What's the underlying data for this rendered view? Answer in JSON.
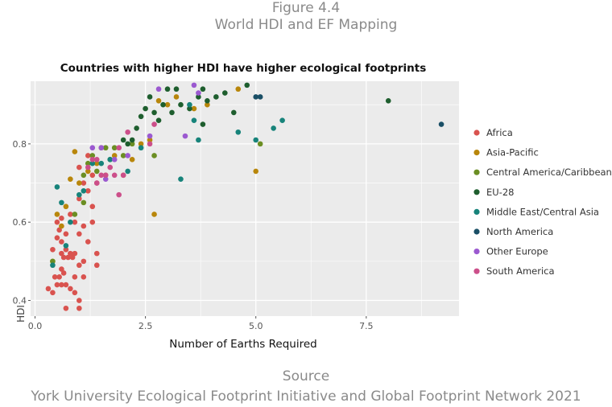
{
  "figure": {
    "number": "Figure 4.4",
    "name": "World HDI and EF Mapping"
  },
  "source": {
    "label": "Source",
    "text": "York University Ecological Footprint Initiative and Global Footprint Network 2021"
  },
  "chart_data": {
    "type": "scatter",
    "title": "Countries with higher HDI have higher ecological footprints",
    "xlabel": "Number of Earths Required",
    "ylabel": "HDI",
    "xlim": [
      -0.1,
      9.6
    ],
    "ylim": [
      0.36,
      0.96
    ],
    "xticks": [
      0,
      2.5,
      5,
      7.5
    ],
    "xtick_labels": [
      "0.0",
      "2.5",
      "5.0",
      "7.5"
    ],
    "yticks": [
      0.4,
      0.6,
      0.8
    ],
    "ytick_labels": [
      "0.4",
      "0.6",
      "0.8"
    ],
    "grid": true,
    "legend_position": "right",
    "series": [
      {
        "name": "Africa",
        "color": "#d9534f",
        "points": [
          [
            0.3,
            0.43
          ],
          [
            0.4,
            0.42
          ],
          [
            0.45,
            0.46
          ],
          [
            0.5,
            0.44
          ],
          [
            0.55,
            0.46
          ],
          [
            0.6,
            0.48
          ],
          [
            0.6,
            0.44
          ],
          [
            0.65,
            0.47
          ],
          [
            0.7,
            0.44
          ],
          [
            0.8,
            0.43
          ],
          [
            0.9,
            0.46
          ],
          [
            0.9,
            0.42
          ],
          [
            1.0,
            0.4
          ],
          [
            1.0,
            0.38
          ],
          [
            1.1,
            0.46
          ],
          [
            0.7,
            0.38
          ],
          [
            1.4,
            0.52
          ],
          [
            1.4,
            0.49
          ],
          [
            0.4,
            0.53
          ],
          [
            0.5,
            0.56
          ],
          [
            0.6,
            0.55
          ],
          [
            0.6,
            0.52
          ],
          [
            0.65,
            0.51
          ],
          [
            0.7,
            0.53
          ],
          [
            0.75,
            0.51
          ],
          [
            0.8,
            0.52
          ],
          [
            0.85,
            0.51
          ],
          [
            0.9,
            0.52
          ],
          [
            1.0,
            0.49
          ],
          [
            1.1,
            0.5
          ],
          [
            0.5,
            0.6
          ],
          [
            0.55,
            0.58
          ],
          [
            0.6,
            0.61
          ],
          [
            0.7,
            0.57
          ],
          [
            0.8,
            0.62
          ],
          [
            0.9,
            0.6
          ],
          [
            1.0,
            0.57
          ],
          [
            1.1,
            0.59
          ],
          [
            1.2,
            0.55
          ],
          [
            1.3,
            0.6
          ],
          [
            1.3,
            0.64
          ],
          [
            1.0,
            0.66
          ],
          [
            1.1,
            0.7
          ],
          [
            1.2,
            0.68
          ],
          [
            1.3,
            0.72
          ],
          [
            1.4,
            0.7
          ],
          [
            1.0,
            0.74
          ],
          [
            1.2,
            0.77
          ]
        ]
      },
      {
        "name": "Asia-Pacific",
        "color": "#b8860b",
        "points": [
          [
            0.4,
            0.5
          ],
          [
            0.5,
            0.62
          ],
          [
            0.6,
            0.59
          ],
          [
            0.7,
            0.64
          ],
          [
            0.8,
            0.71
          ],
          [
            0.9,
            0.78
          ],
          [
            1.0,
            0.7
          ],
          [
            1.2,
            0.73
          ],
          [
            1.4,
            0.75
          ],
          [
            1.5,
            0.79
          ],
          [
            1.6,
            0.72
          ],
          [
            1.8,
            0.77
          ],
          [
            2.0,
            0.72
          ],
          [
            2.2,
            0.76
          ],
          [
            2.4,
            0.8
          ],
          [
            2.6,
            0.81
          ],
          [
            2.8,
            0.91
          ],
          [
            3.0,
            0.9
          ],
          [
            3.2,
            0.92
          ],
          [
            3.6,
            0.89
          ],
          [
            3.9,
            0.9
          ],
          [
            4.6,
            0.94
          ],
          [
            5.0,
            0.73
          ],
          [
            2.7,
            0.62
          ]
        ]
      },
      {
        "name": "Central America/Caribbean",
        "color": "#6b8e23",
        "points": [
          [
            0.4,
            0.5
          ],
          [
            0.9,
            0.62
          ],
          [
            1.1,
            0.65
          ],
          [
            1.1,
            0.72
          ],
          [
            1.2,
            0.75
          ],
          [
            1.3,
            0.77
          ],
          [
            1.4,
            0.73
          ],
          [
            1.6,
            0.79
          ],
          [
            1.7,
            0.76
          ],
          [
            1.8,
            0.79
          ],
          [
            2.0,
            0.77
          ],
          [
            2.2,
            0.8
          ],
          [
            2.7,
            0.77
          ],
          [
            5.1,
            0.8
          ]
        ]
      },
      {
        "name": "EU-28",
        "color": "#1e5e2e",
        "points": [
          [
            2.2,
            0.81
          ],
          [
            2.3,
            0.84
          ],
          [
            2.4,
            0.87
          ],
          [
            2.5,
            0.89
          ],
          [
            2.6,
            0.92
          ],
          [
            2.7,
            0.88
          ],
          [
            2.8,
            0.86
          ],
          [
            2.9,
            0.9
          ],
          [
            3.0,
            0.94
          ],
          [
            3.1,
            0.88
          ],
          [
            3.2,
            0.94
          ],
          [
            3.3,
            0.9
          ],
          [
            3.5,
            0.89
          ],
          [
            3.7,
            0.92
          ],
          [
            3.8,
            0.94
          ],
          [
            3.9,
            0.91
          ],
          [
            4.1,
            0.92
          ],
          [
            4.3,
            0.93
          ],
          [
            4.5,
            0.88
          ],
          [
            4.8,
            0.95
          ],
          [
            3.8,
            0.85
          ],
          [
            2.0,
            0.81
          ],
          [
            2.1,
            0.8
          ],
          [
            8.0,
            0.91
          ]
        ]
      },
      {
        "name": "Middle East/Central Asia",
        "color": "#17837a",
        "points": [
          [
            0.4,
            0.49
          ],
          [
            0.5,
            0.69
          ],
          [
            0.6,
            0.65
          ],
          [
            0.7,
            0.54
          ],
          [
            0.8,
            0.6
          ],
          [
            1.0,
            0.67
          ],
          [
            1.1,
            0.68
          ],
          [
            1.3,
            0.75
          ],
          [
            1.5,
            0.75
          ],
          [
            1.7,
            0.76
          ],
          [
            2.1,
            0.73
          ],
          [
            2.4,
            0.79
          ],
          [
            3.3,
            0.71
          ],
          [
            3.6,
            0.86
          ],
          [
            3.7,
            0.81
          ],
          [
            4.6,
            0.83
          ],
          [
            5.0,
            0.81
          ],
          [
            5.4,
            0.84
          ],
          [
            5.6,
            0.86
          ],
          [
            3.5,
            0.9
          ]
        ]
      },
      {
        "name": "North America",
        "color": "#1a4f66",
        "points": [
          [
            5.0,
            0.92
          ],
          [
            5.1,
            0.92
          ],
          [
            9.2,
            0.85
          ]
        ]
      },
      {
        "name": "Other Europe",
        "color": "#9b59d0",
        "points": [
          [
            1.3,
            0.79
          ],
          [
            1.5,
            0.79
          ],
          [
            1.8,
            0.76
          ],
          [
            2.1,
            0.77
          ],
          [
            2.6,
            0.82
          ],
          [
            2.8,
            0.94
          ],
          [
            3.4,
            0.82
          ],
          [
            3.6,
            0.95
          ],
          [
            3.7,
            0.93
          ],
          [
            1.6,
            0.71
          ]
        ]
      },
      {
        "name": "South America",
        "color": "#cc4f8a",
        "points": [
          [
            1.2,
            0.74
          ],
          [
            1.3,
            0.76
          ],
          [
            1.4,
            0.7
          ],
          [
            1.5,
            0.72
          ],
          [
            1.6,
            0.72
          ],
          [
            1.7,
            0.74
          ],
          [
            1.8,
            0.72
          ],
          [
            1.9,
            0.67
          ],
          [
            2.0,
            0.72
          ],
          [
            2.1,
            0.83
          ],
          [
            2.6,
            0.8
          ],
          [
            2.7,
            0.85
          ],
          [
            1.9,
            0.79
          ],
          [
            1.4,
            0.76
          ]
        ]
      }
    ]
  }
}
